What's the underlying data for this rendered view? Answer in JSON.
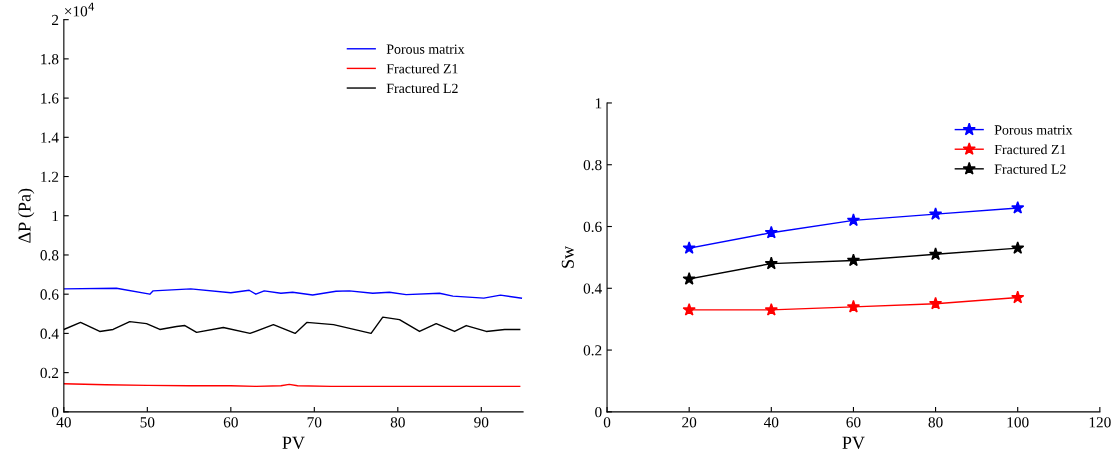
{
  "chart_data": [
    {
      "type": "line",
      "xlabel": "PV",
      "ylabel": "ΔP (Pa)",
      "annotations": [
        "×10$^{4}$"
      ],
      "xlim": [
        40,
        95
      ],
      "xticks": [
        40,
        50,
        60,
        70,
        80,
        90
      ],
      "ylim": [
        0,
        2
      ],
      "yticks": [
        0,
        0.2,
        0.4,
        0.6,
        0.8,
        1,
        1.2,
        1.4,
        1.6,
        1.8,
        2
      ],
      "grid": false,
      "legend": "top right",
      "marker": "none",
      "line_style": "solid",
      "series": [
        {
          "name": "Porous matrix",
          "color": "#0000ff",
          "x": [
            40,
            46.3,
            50.3,
            50.7,
            55.2,
            60,
            62.2,
            63,
            64,
            66,
            67.4,
            69.8,
            72.6,
            74.2,
            77,
            79,
            81,
            85,
            86.6,
            90.3,
            92.3,
            94.8
          ],
          "values": [
            0.627,
            0.63,
            0.6,
            0.617,
            0.627,
            0.607,
            0.62,
            0.6,
            0.617,
            0.605,
            0.61,
            0.596,
            0.615,
            0.617,
            0.605,
            0.61,
            0.598,
            0.605,
            0.59,
            0.58,
            0.595,
            0.58
          ]
        },
        {
          "name": "Fractured Z1",
          "color": "#ff0000",
          "x": [
            40,
            45,
            50,
            55,
            60,
            63,
            66,
            67,
            68,
            72,
            76,
            80,
            85,
            90,
            94.6
          ],
          "values": [
            0.143,
            0.138,
            0.135,
            0.133,
            0.133,
            0.13,
            0.133,
            0.14,
            0.133,
            0.13,
            0.13,
            0.13,
            0.13,
            0.13,
            0.13
          ]
        },
        {
          "name": "Fractured L2",
          "color": "#000000",
          "x": [
            40,
            42,
            44.3,
            45.9,
            47.9,
            49.9,
            51.5,
            53.5,
            54.5,
            55.9,
            59.1,
            62.3,
            65.1,
            67.7,
            69.1,
            72.3,
            76.8,
            78.2,
            80.2,
            82.6,
            84.6,
            86.8,
            88.2,
            90.6,
            92.8,
            94.6
          ],
          "values": [
            0.42,
            0.456,
            0.41,
            0.42,
            0.46,
            0.45,
            0.42,
            0.435,
            0.44,
            0.405,
            0.43,
            0.4,
            0.445,
            0.4,
            0.456,
            0.445,
            0.4,
            0.483,
            0.47,
            0.41,
            0.45,
            0.41,
            0.44,
            0.41,
            0.42,
            0.42
          ]
        }
      ]
    },
    {
      "type": "line",
      "xlabel": "PV",
      "ylabel": "Sw",
      "x": [
        20,
        40,
        60,
        80,
        100
      ],
      "xlim": [
        0,
        120
      ],
      "xticks": [
        0,
        20,
        40,
        60,
        80,
        100,
        120
      ],
      "ylim": [
        0,
        1
      ],
      "yticks": [
        0,
        0.2,
        0.4,
        0.6,
        0.8,
        1
      ],
      "grid": false,
      "legend": "top right",
      "marker": "star",
      "line_style": "solid",
      "series": [
        {
          "name": "Porous matrix",
          "color": "#0000ff",
          "values": [
            0.53,
            0.58,
            0.62,
            0.64,
            0.66
          ]
        },
        {
          "name": "Fractured Z1",
          "color": "#ff0000",
          "values": [
            0.33,
            0.33,
            0.34,
            0.35,
            0.37
          ]
        },
        {
          "name": "Fractured L2",
          "color": "#000000",
          "values": [
            0.43,
            0.48,
            0.49,
            0.51,
            0.53
          ]
        }
      ]
    }
  ]
}
